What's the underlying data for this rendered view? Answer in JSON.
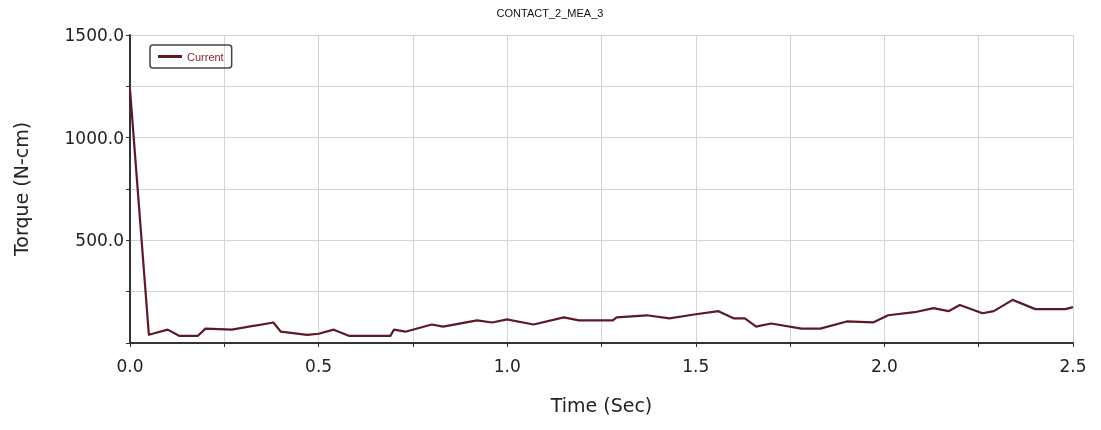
{
  "chart_data": {
    "type": "line",
    "title": "CONTACT_2_MEA_3",
    "xlabel": "Time (Sec)",
    "ylabel": "Torque (N-cm)",
    "xlim": [
      0,
      2.5
    ],
    "xticks": [
      {
        "value": 0,
        "label": "0.0"
      },
      {
        "value": 0.25,
        "label": null
      },
      {
        "value": 0.5,
        "label": "0.5"
      },
      {
        "value": 0.75,
        "label": null
      },
      {
        "value": 1,
        "label": "1.0"
      },
      {
        "value": 1.25,
        "label": null
      },
      {
        "value": 1.5,
        "label": "1.5"
      },
      {
        "value": 1.75,
        "label": null
      },
      {
        "value": 2,
        "label": "2.0"
      },
      {
        "value": 2.25,
        "label": null
      },
      {
        "value": 2.5,
        "label": "2.5"
      }
    ],
    "ylim": [
      0,
      1500
    ],
    "yticks": [
      {
        "value": 0,
        "label": null
      },
      {
        "value": 250,
        "label": null
      },
      {
        "value": 500,
        "label": "500.0"
      },
      {
        "value": 750,
        "label": null
      },
      {
        "value": 1000,
        "label": "1000.0"
      },
      {
        "value": 1250,
        "label": null
      },
      {
        "value": 1500,
        "label": "1500.0"
      }
    ],
    "grid": true,
    "legend": "top left",
    "marker": "none",
    "line_style": "solid",
    "series": [
      {
        "name": "Current",
        "color": "#5c1a24",
        "x": [
          0,
          0.05,
          0.1,
          0.13,
          0.18,
          0.2,
          0.27,
          0.38,
          0.4,
          0.47,
          0.5,
          0.54,
          0.58,
          0.63,
          0.69,
          0.7,
          0.73,
          0.8,
          0.83,
          0.92,
          0.96,
          1.0,
          1.07,
          1.15,
          1.19,
          1.25,
          1.28,
          1.29,
          1.37,
          1.43,
          1.5,
          1.56,
          1.6,
          1.63,
          1.66,
          1.7,
          1.78,
          1.83,
          1.9,
          1.97,
          2.01,
          2.08,
          2.13,
          2.17,
          2.2,
          2.26,
          2.29,
          2.34,
          2.4,
          2.48,
          2.5
        ],
        "values": [
          1235,
          40,
          65,
          35,
          35,
          70,
          65,
          100,
          55,
          40,
          45,
          65,
          35,
          35,
          35,
          65,
          55,
          90,
          80,
          110,
          100,
          115,
          90,
          125,
          110,
          110,
          110,
          125,
          135,
          120,
          140,
          155,
          120,
          120,
          80,
          95,
          70,
          70,
          105,
          100,
          135,
          150,
          170,
          155,
          185,
          145,
          155,
          210,
          165,
          165,
          175
        ]
      }
    ]
  }
}
